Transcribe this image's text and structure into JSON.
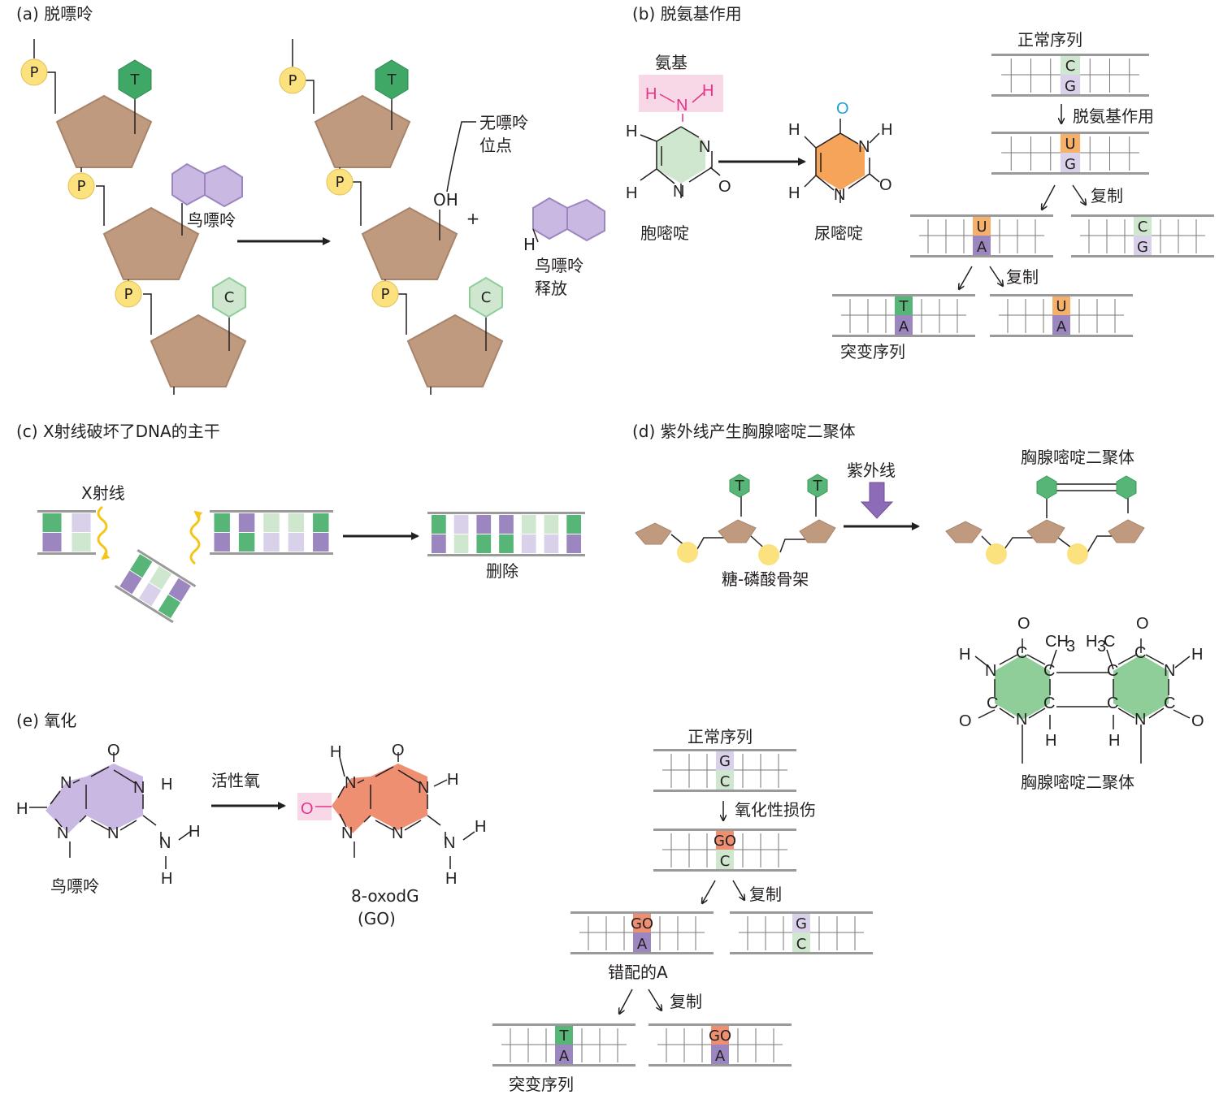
{
  "colors": {
    "sugar": "#bf9a7f",
    "sugar_edge": "#a8846a",
    "phosphate": "#fbe27e",
    "purple": "#9b86bf",
    "purple_light": "#d9d0ea",
    "green": "#58b578",
    "green_light": "#cfe6cf",
    "orange": "#f5b06a",
    "salmon": "#ef8f72",
    "magenta": "#e6348c",
    "gray": "#9a9a9a",
    "yellow_wave": "#f5c518",
    "ring_green": "#8fce99"
  },
  "panel_a": {
    "title": "(a)  脱嘌呤",
    "phosphate": "P",
    "base_T": "T",
    "base_C": "C",
    "guanine_label": "鸟嘌呤",
    "ap_site": [
      "无嘌呤",
      "位点"
    ],
    "oh": "OH",
    "plus": "+",
    "h": "H",
    "released": [
      "鸟嘌呤",
      "释放"
    ]
  },
  "panel_b": {
    "title": "(b)  脱氨基作用",
    "amino": "氨基",
    "cytosine": "胞嘧啶",
    "uracil": "尿嘧啶",
    "atom_H": "H",
    "atom_N": "N",
    "atom_O": "O",
    "normal": "正常序列",
    "deamination": "脱氨基作用",
    "replication": "复制",
    "mutant": "突变序列",
    "bases": {
      "C": "C",
      "G": "G",
      "U": "U",
      "A": "A",
      "T": "T"
    }
  },
  "panel_c": {
    "title": "(c) X射线破坏了DNA的主干",
    "xray": "X射线",
    "deletion": "删除"
  },
  "panel_d": {
    "title": "(d)  紫外线产生胸腺嘧啶二聚体",
    "uv": "紫外线",
    "dimer": "胸腺嘧啶二聚体",
    "backbone": "糖-磷酸骨架",
    "base_T": "T",
    "dimer_caption": "胸腺嘧啶二聚体",
    "atom_C": "C",
    "atom_N": "N",
    "atom_O": "O",
    "atom_H": "H",
    "ch3": "CH",
    "h3c": "H",
    "sub3": "3"
  },
  "panel_e": {
    "title": "(e)  氧化",
    "guanine": "鸟嘌呤",
    "ros": "活性氧",
    "product": [
      "8-oxodG",
      "(GO)"
    ],
    "atom_O": "O",
    "atom_N": "N",
    "atom_H": "H",
    "normal": "正常序列",
    "oxidative": "氧化性损伤",
    "replication": "复制",
    "mismatch": "错配的A",
    "mutant": "突变序列",
    "bases": {
      "G": "G",
      "C": "C",
      "GO": "GO",
      "A": "A",
      "T": "T"
    }
  }
}
